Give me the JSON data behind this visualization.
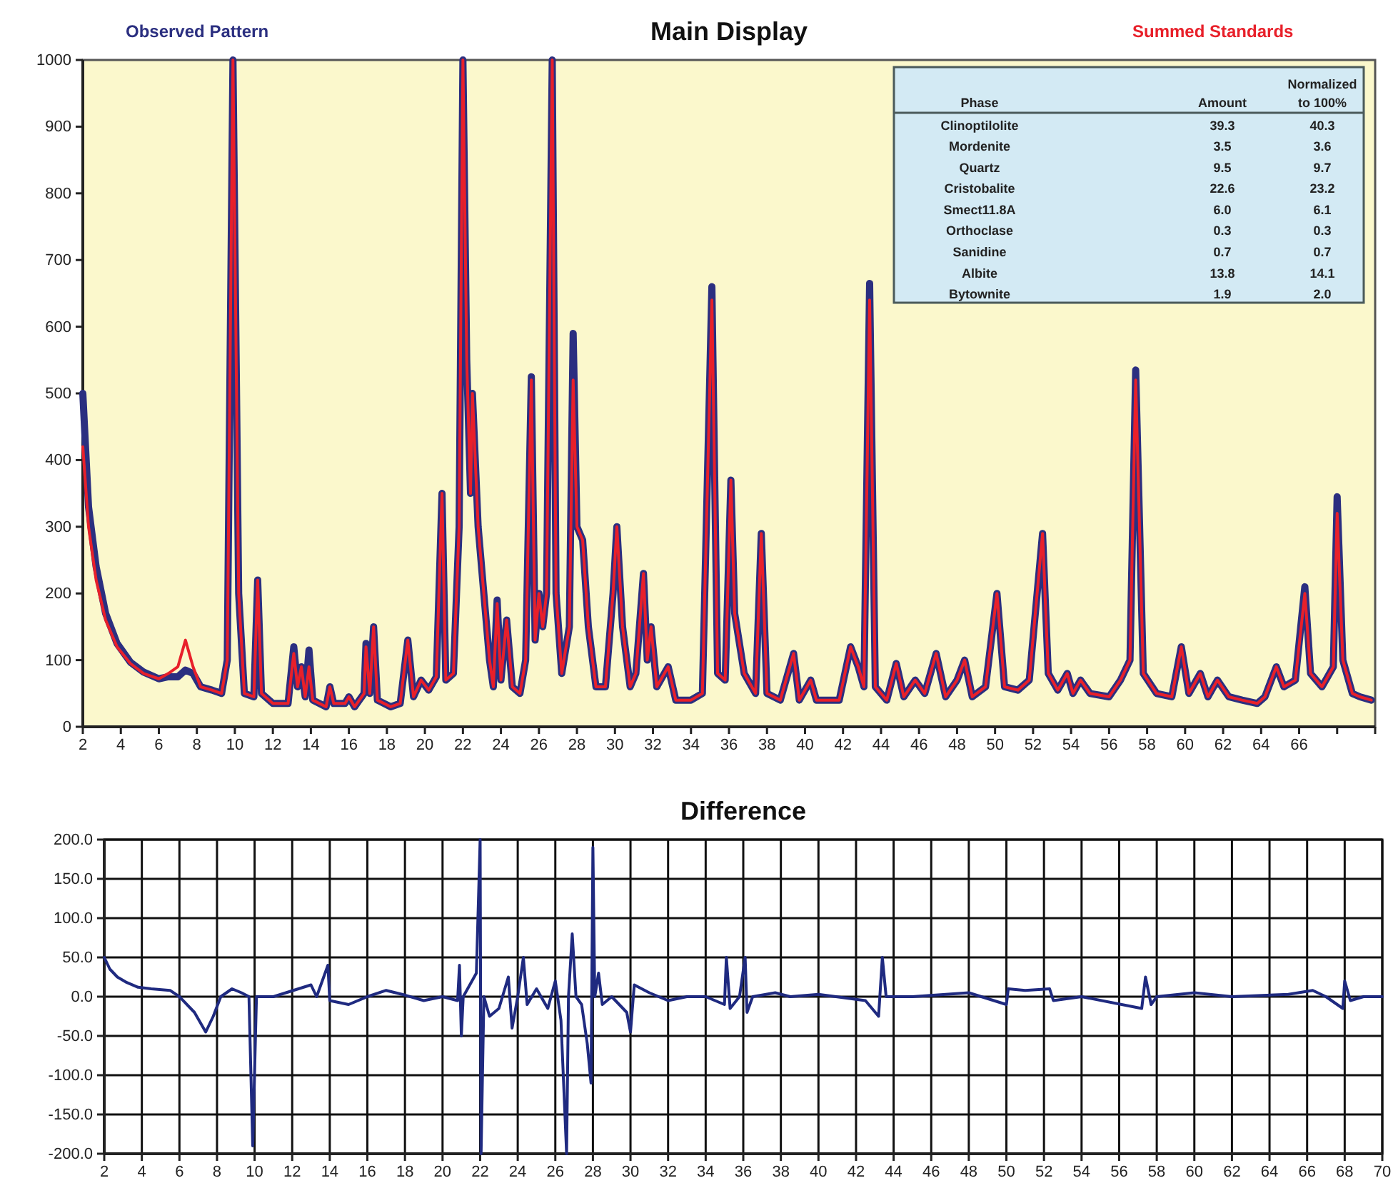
{
  "chart_data": [
    {
      "type": "line",
      "title": "Main Display",
      "legend": "top",
      "x": [
        2.0,
        2.3,
        2.7,
        3.2,
        3.8,
        4.5,
        5.2,
        6.0,
        6.5,
        7.0,
        7.4,
        7.8,
        8.2,
        8.8,
        9.3,
        9.6,
        9.9,
        10.2,
        10.5,
        11.0,
        11.2,
        11.4,
        12.0,
        12.8,
        13.1,
        13.3,
        13.5,
        13.7,
        13.9,
        14.1,
        14.8,
        15.0,
        15.2,
        15.8,
        16.0,
        16.3,
        16.8,
        16.9,
        17.1,
        17.3,
        17.5,
        18.2,
        18.7,
        19.1,
        19.4,
        19.8,
        20.2,
        20.6,
        20.9,
        21.1,
        21.5,
        21.8,
        22.0,
        22.2,
        22.4,
        22.5,
        22.8,
        23.1,
        23.4,
        23.6,
        23.8,
        24.0,
        24.3,
        24.6,
        25.0,
        25.3,
        25.6,
        25.8,
        26.0,
        26.2,
        26.4,
        26.7,
        26.9,
        27.2,
        27.6,
        27.8,
        28.0,
        28.3,
        28.6,
        29.0,
        29.5,
        29.9,
        30.1,
        30.4,
        30.8,
        31.1,
        31.5,
        31.7,
        31.9,
        32.2,
        32.8,
        33.2,
        34.0,
        34.6,
        35.1,
        35.4,
        35.8,
        36.1,
        36.3,
        36.8,
        37.4,
        37.7,
        38.0,
        38.7,
        39.4,
        39.7,
        40.3,
        40.6,
        41.2,
        41.8,
        42.4,
        42.8,
        43.1,
        43.4,
        43.7,
        44.3,
        44.8,
        45.2,
        45.8,
        46.3,
        46.9,
        47.4,
        48.0,
        48.4,
        48.8,
        49.5,
        50.1,
        50.5,
        51.2,
        51.8,
        52.5,
        52.8,
        53.3,
        53.8,
        54.1,
        54.5,
        55.0,
        56.0,
        56.6,
        57.1,
        57.4,
        57.8,
        58.5,
        59.3,
        59.8,
        60.2,
        60.8,
        61.2,
        61.7,
        62.3,
        63.0,
        63.8,
        64.2,
        64.8,
        65.2,
        65.8,
        66.3,
        66.6,
        67.2,
        67.8,
        68.0,
        68.3,
        68.8,
        69.2,
        69.8
      ],
      "series": [
        {
          "name": "Observed Pattern",
          "color": "#2b2f80",
          "values": [
            500,
            330,
            240,
            170,
            125,
            97,
            82,
            72,
            75,
            75,
            85,
            80,
            60,
            55,
            50,
            100,
            1000,
            200,
            50,
            45,
            220,
            50,
            35,
            35,
            120,
            60,
            90,
            45,
            115,
            40,
            30,
            60,
            35,
            35,
            45,
            30,
            50,
            125,
            50,
            150,
            40,
            30,
            35,
            130,
            45,
            70,
            55,
            75,
            350,
            70,
            80,
            300,
            1000,
            550,
            350,
            500,
            300,
            200,
            100,
            60,
            190,
            70,
            160,
            60,
            50,
            100,
            525,
            130,
            200,
            150,
            200,
            1000,
            200,
            80,
            150,
            590,
            300,
            280,
            150,
            60,
            60,
            200,
            300,
            150,
            60,
            80,
            230,
            100,
            150,
            60,
            90,
            40,
            40,
            50,
            660,
            80,
            70,
            370,
            170,
            80,
            50,
            290,
            50,
            40,
            110,
            40,
            70,
            40,
            40,
            40,
            120,
            90,
            60,
            665,
            60,
            40,
            95,
            45,
            70,
            50,
            110,
            45,
            70,
            100,
            45,
            60,
            200,
            60,
            55,
            70,
            290,
            80,
            55,
            80,
            50,
            70,
            50,
            45,
            70,
            100,
            535,
            80,
            50,
            45,
            120,
            50,
            80,
            45,
            70,
            45,
            40,
            35,
            45,
            90,
            60,
            70,
            210,
            80,
            60,
            90,
            345,
            100,
            50,
            45,
            40
          ]
        },
        {
          "name": "Summed Standards",
          "color": "#e8202a",
          "values": [
            420,
            300,
            220,
            160,
            120,
            95,
            80,
            72,
            80,
            90,
            130,
            90,
            60,
            55,
            50,
            100,
            1000,
            200,
            50,
            45,
            220,
            50,
            35,
            35,
            110,
            60,
            90,
            45,
            90,
            40,
            30,
            60,
            35,
            35,
            45,
            30,
            50,
            120,
            50,
            150,
            40,
            30,
            35,
            130,
            45,
            70,
            55,
            75,
            350,
            70,
            80,
            300,
            1000,
            550,
            350,
            500,
            300,
            200,
            100,
            60,
            185,
            70,
            160,
            60,
            50,
            100,
            520,
            130,
            200,
            150,
            200,
            1000,
            200,
            80,
            150,
            520,
            300,
            280,
            150,
            60,
            60,
            200,
            300,
            150,
            60,
            80,
            230,
            100,
            150,
            60,
            90,
            40,
            40,
            50,
            640,
            80,
            70,
            370,
            170,
            80,
            50,
            290,
            50,
            40,
            110,
            40,
            70,
            40,
            40,
            40,
            120,
            90,
            60,
            640,
            60,
            40,
            95,
            45,
            70,
            50,
            110,
            45,
            70,
            100,
            45,
            60,
            200,
            60,
            55,
            70,
            290,
            80,
            55,
            80,
            50,
            70,
            50,
            45,
            70,
            100,
            520,
            80,
            50,
            45,
            120,
            50,
            80,
            45,
            70,
            45,
            40,
            35,
            45,
            90,
            60,
            70,
            200,
            80,
            60,
            90,
            320,
            100,
            50,
            45,
            40
          ]
        }
      ],
      "xlim": [
        2,
        70
      ],
      "xticks": [
        2,
        4,
        6,
        8,
        10,
        12,
        14,
        16,
        18,
        20,
        22,
        24,
        26,
        28,
        30,
        32,
        34,
        36,
        38,
        40,
        42,
        44,
        46,
        48,
        50,
        52,
        54,
        56,
        58,
        60,
        62,
        64,
        66,
        {
          "value": 68,
          "label": null
        },
        {
          "value": 70,
          "label": null
        }
      ],
      "ylim": [
        0,
        1000
      ],
      "yticks": [
        0,
        100,
        200,
        300,
        400,
        500,
        600,
        700,
        800,
        900,
        1000
      ]
    },
    {
      "type": "other",
      "xlabel": "Phase",
      "categories": [
        "Clinoptilolite",
        "Mordenite",
        "Quartz",
        "Cristobalite",
        "Smect11.8A",
        "Orthoclase",
        "Sanidine",
        "Albite",
        "Bytownite"
      ],
      "series": [
        {
          "name": "Amount",
          "values": [
            39.3,
            3.5,
            9.5,
            22.6,
            6.0,
            0.3,
            0.7,
            13.8,
            1.9
          ],
          "value_labels": [
            "39.3",
            "3.5",
            "9.5",
            "22.6",
            "6.0",
            "0.3",
            "0.7",
            "13.8",
            "1.9"
          ]
        },
        {
          "name": "Normalized to 100%",
          "values": [
            40.3,
            3.6,
            9.7,
            23.2,
            6.1,
            0.3,
            0.7,
            14.1,
            2.0
          ],
          "value_labels": [
            "40.3",
            "3.6",
            "9.7",
            "23.2",
            "6.1",
            "0.3",
            "0.7",
            "14.1",
            "2.0"
          ]
        }
      ]
    },
    {
      "type": "line",
      "title": "Difference",
      "grid": true,
      "x": [
        2.0,
        2.3,
        2.7,
        3.2,
        3.8,
        4.5,
        5.5,
        6.0,
        6.8,
        7.4,
        7.8,
        8.2,
        8.8,
        9.3,
        9.7,
        9.9,
        10.1,
        11.0,
        13.0,
        13.3,
        13.9,
        14.0,
        15.0,
        16.0,
        17.0,
        18.0,
        19.0,
        20.0,
        20.8,
        20.9,
        21.0,
        21.1,
        21.8,
        22.0,
        22.05,
        22.2,
        22.5,
        23.0,
        23.5,
        23.7,
        24.0,
        24.3,
        24.5,
        25.0,
        25.6,
        26.0,
        26.3,
        26.6,
        26.7,
        26.9,
        27.1,
        27.4,
        27.7,
        27.9,
        28.0,
        28.1,
        28.3,
        28.5,
        29.0,
        29.8,
        30.0,
        30.2,
        31.0,
        32.0,
        33.0,
        34.0,
        35.0,
        35.1,
        35.3,
        35.8,
        36.1,
        36.2,
        36.5,
        37.7,
        38.5,
        40.0,
        42.5,
        43.2,
        43.4,
        43.6,
        45.0,
        48.0,
        50.0,
        50.1,
        51.0,
        52.3,
        52.5,
        54.0,
        57.2,
        57.4,
        57.7,
        58.0,
        60.0,
        62.0,
        65.0,
        66.3,
        67.0,
        67.9,
        68.0,
        68.3,
        69.0,
        70.0
      ],
      "series": [
        {
          "color": "#1f2a80",
          "values": [
            50,
            35,
            25,
            18,
            12,
            10,
            8,
            0,
            -20,
            -45,
            -25,
            0,
            10,
            5,
            0,
            -190,
            0,
            0,
            15,
            0,
            40,
            -5,
            -10,
            0,
            8,
            2,
            -5,
            0,
            -5,
            40,
            -50,
            0,
            30,
            200,
            -200,
            0,
            -25,
            -15,
            25,
            -40,
            0,
            50,
            -10,
            10,
            -15,
            20,
            -30,
            -200,
            0,
            80,
            0,
            -10,
            -60,
            -110,
            190,
            0,
            30,
            -10,
            0,
            -20,
            -45,
            15,
            5,
            -5,
            0,
            0,
            -10,
            50,
            -15,
            0,
            50,
            -20,
            0,
            5,
            0,
            3,
            -5,
            -25,
            50,
            0,
            0,
            5,
            -10,
            10,
            8,
            10,
            -5,
            0,
            -15,
            25,
            -10,
            0,
            5,
            0,
            3,
            8,
            0,
            -15,
            20,
            -5,
            0,
            0
          ]
        }
      ],
      "xlim": [
        2,
        70
      ],
      "xticks": [
        2,
        4,
        6,
        8,
        10,
        12,
        14,
        16,
        18,
        20,
        22,
        24,
        26,
        28,
        30,
        32,
        34,
        36,
        38,
        40,
        42,
        44,
        46,
        48,
        50,
        52,
        54,
        56,
        58,
        60,
        62,
        64,
        66,
        68,
        70
      ],
      "ylim": [
        -200,
        200
      ],
      "yticks": [
        {
          "value": -200,
          "label": "-200.0"
        },
        {
          "value": -150,
          "label": "-150.0"
        },
        {
          "value": -100,
          "label": "-100.0"
        },
        {
          "value": -50,
          "label": "-50.0"
        },
        {
          "value": 0,
          "label": "0.0"
        },
        {
          "value": 50,
          "label": "50.0"
        },
        {
          "value": 100,
          "label": "100.0"
        },
        {
          "value": 150,
          "label": "150.0"
        },
        {
          "value": 200,
          "label": "200.0"
        }
      ]
    }
  ]
}
